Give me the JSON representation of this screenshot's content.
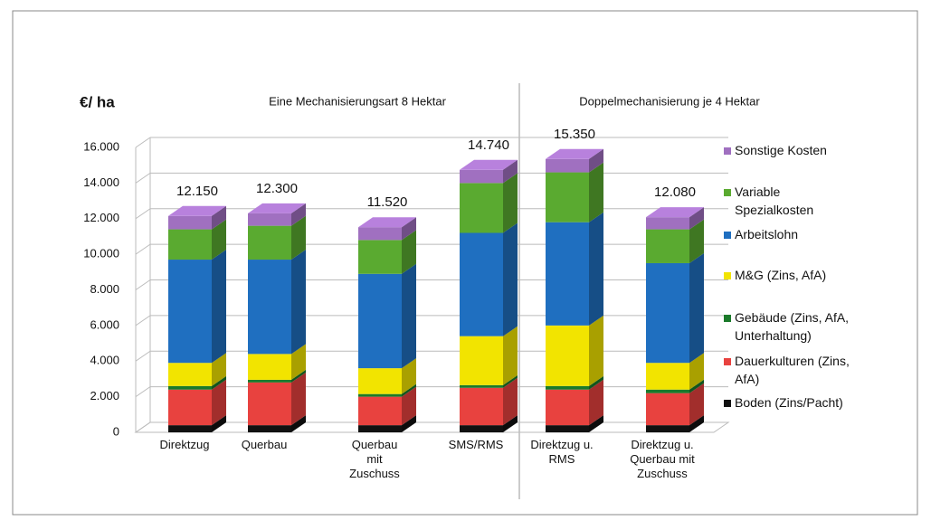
{
  "chart_data": {
    "type": "stacked-bar-3d",
    "ylabel": "€/ ha",
    "group_labels": [
      "Eine Mechanisierungsart 8 Hektar",
      "Doppelmechanisierung je 4 Hektar"
    ],
    "categories": [
      "Direktzug",
      "Querbau",
      "Querbau\nmit\nZuschuss",
      "SMS/RMS",
      "Direktzug u.\nRMS",
      "Direktzug u.\nQuerbau mit\nZuschuss"
    ],
    "series": [
      {
        "name": "Boden (Zins/Pacht)",
        "color": "#111111",
        "values": [
          400,
          400,
          400,
          400,
          400,
          400
        ]
      },
      {
        "name": "Dauerkulturen (Zins,\nAfA)",
        "color": "#e8423f",
        "values": [
          2000,
          2400,
          1600,
          2100,
          2000,
          1800
        ]
      },
      {
        "name": "Gebäude (Zins, AfA,\nUnterhaltung)",
        "color": "#1a7a2a",
        "values": [
          200,
          150,
          150,
          150,
          200,
          200
        ]
      },
      {
        "name": "M&G (Zins, AfA)",
        "color": "#f2e400",
        "values": [
          1300,
          1450,
          1450,
          2750,
          3400,
          1500
        ]
      },
      {
        "name": "Arbeitslohn",
        "color": "#1f6fc0",
        "values": [
          5800,
          5300,
          5300,
          5800,
          5800,
          5600
        ]
      },
      {
        "name": "Variable\nSpezialkosten",
        "color": "#5aaa30",
        "values": [
          1700,
          1900,
          1900,
          2800,
          2800,
          1900
        ]
      },
      {
        "name": "Sonstige Kosten",
        "color": "#a070c0",
        "values": [
          750,
          700,
          720,
          740,
          750,
          680
        ]
      }
    ],
    "totals": {
      "values": [
        12150,
        12300,
        11520,
        14740,
        15350,
        12080
      ],
      "value_labels": [
        "12.150",
        "12.300",
        "11.520",
        "14.740",
        "15.350",
        "12.080"
      ]
    },
    "ylim": [
      0,
      16000
    ],
    "yticks": [
      0,
      {
        "value": 2000,
        "label": "2.000"
      },
      {
        "value": 4000,
        "label": "4.000"
      },
      {
        "value": 6000,
        "label": "6.000"
      },
      {
        "value": 8000,
        "label": "8.000"
      },
      {
        "value": 10000,
        "label": "10.000"
      },
      {
        "value": 12000,
        "label": "12.000"
      },
      {
        "value": 14000,
        "label": "14.000"
      },
      {
        "value": 16000,
        "label": "16.000"
      }
    ],
    "grid": true,
    "legend": "right"
  }
}
